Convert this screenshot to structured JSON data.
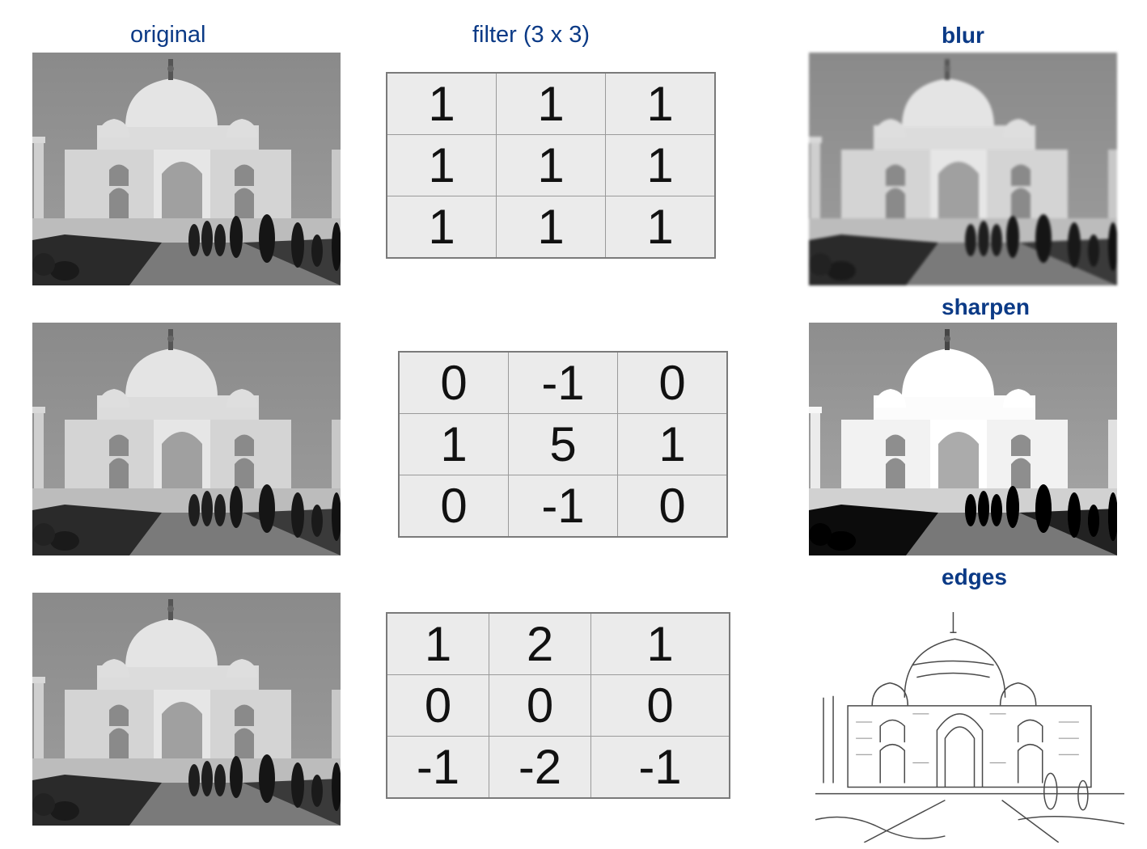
{
  "headers": {
    "original": "original",
    "filter": "filter (3 x 3)",
    "blur": "blur",
    "sharpen": "sharpen",
    "edges": "edges"
  },
  "icons": [
    "taj-mahal-photo-icon",
    "taj-mahal-edge-sketch-icon"
  ],
  "colors": {
    "label": "#0b3a86",
    "cell_bg": "#ebebeb",
    "grid": "#9a9a9a"
  },
  "kernels": {
    "blur": [
      [
        "1",
        "1",
        "1"
      ],
      [
        "1",
        "1",
        "1"
      ],
      [
        "1",
        "1",
        "1"
      ]
    ],
    "sharpen": [
      [
        "0",
        "-1",
        "0"
      ],
      [
        "1",
        "5",
        "1"
      ],
      [
        "0",
        "-1",
        "0"
      ]
    ],
    "edges": [
      [
        "1",
        "2",
        "1"
      ],
      [
        "0",
        "0",
        "0"
      ],
      [
        "-1",
        "-2",
        "-1"
      ]
    ]
  }
}
